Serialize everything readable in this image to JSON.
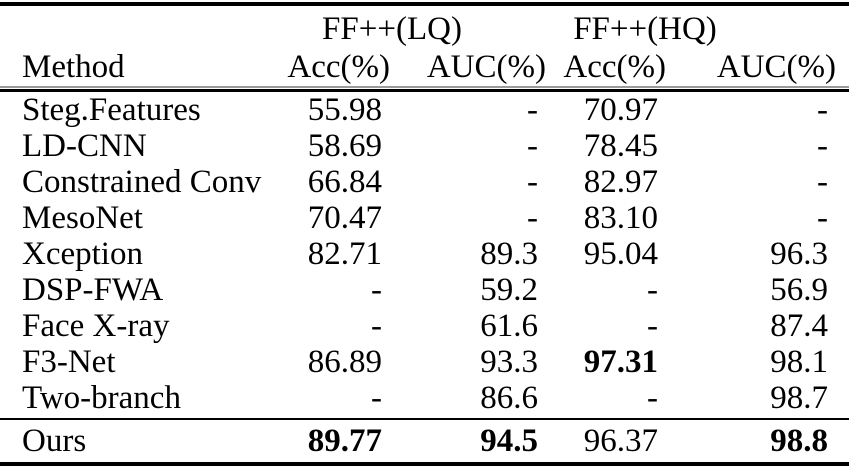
{
  "table": {
    "headers": {
      "group_lq": "FF++(LQ)",
      "group_hq": "FF++(HQ)",
      "method": "Method",
      "lq_acc": "Acc(%)",
      "lq_auc": "AUC(%)",
      "hq_acc": "Acc(%)",
      "hq_auc": "AUC(%)"
    },
    "rows": [
      {
        "method": "Steg.Features",
        "lq_acc": "55.98",
        "lq_auc": "-",
        "hq_acc": "70.97",
        "hq_auc": "-",
        "bold_cells": []
      },
      {
        "method": "LD-CNN",
        "lq_acc": "58.69",
        "lq_auc": "-",
        "hq_acc": "78.45",
        "hq_auc": "-",
        "bold_cells": []
      },
      {
        "method": "Constrained Conv",
        "lq_acc": "66.84",
        "lq_auc": "-",
        "hq_acc": "82.97",
        "hq_auc": "-",
        "bold_cells": []
      },
      {
        "method": "MesoNet",
        "lq_acc": "70.47",
        "lq_auc": "-",
        "hq_acc": "83.10",
        "hq_auc": "-",
        "bold_cells": []
      },
      {
        "method": "Xception",
        "lq_acc": "82.71",
        "lq_auc": "89.3",
        "hq_acc": "95.04",
        "hq_auc": "96.3",
        "bold_cells": []
      },
      {
        "method": "DSP-FWA",
        "lq_acc": "-",
        "lq_auc": "59.2",
        "hq_acc": "-",
        "hq_auc": "56.9",
        "bold_cells": []
      },
      {
        "method": "Face X-ray",
        "lq_acc": "-",
        "lq_auc": "61.6",
        "hq_acc": "-",
        "hq_auc": "87.4",
        "bold_cells": []
      },
      {
        "method": "F3-Net",
        "lq_acc": "86.89",
        "lq_auc": "93.3",
        "hq_acc": "97.31",
        "hq_auc": "98.1",
        "bold_cells": [
          "hq_acc"
        ]
      },
      {
        "method": "Two-branch",
        "lq_acc": "-",
        "lq_auc": "86.6",
        "hq_acc": "-",
        "hq_auc": "98.7",
        "bold_cells": []
      }
    ],
    "ours": {
      "method": "Ours",
      "lq_acc": "89.77",
      "lq_auc": "94.5",
      "hq_acc": "96.37",
      "hq_auc": "98.8",
      "bold_cells": [
        "lq_acc",
        "lq_auc",
        "hq_auc"
      ]
    },
    "colors": {
      "text": "#000000",
      "rule": "#000000",
      "rule_light": "#9a9a9a",
      "background": "#ffffff"
    }
  }
}
